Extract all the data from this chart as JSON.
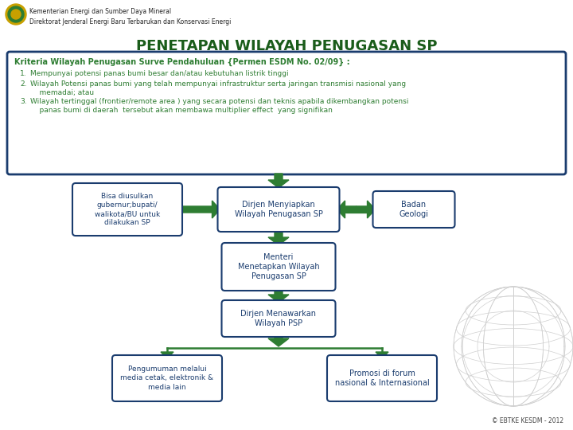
{
  "bg_color": "#ffffff",
  "title": "PENETAPAN WILAYAH PENUGASAN SP",
  "title_color": "#1a5c1a",
  "title_fontsize": 13,
  "header_text": "Kriteria Wilayah Penugasan Surve Pendahuluan {Permen ESDM No. 02/09} :",
  "criteria": [
    "Mempunyai potensi panas bumi besar dan/atau kebutuhan listrik tinggi",
    "Wilayah Potensi panas bumi yang telah mempunyai infrastruktur serta jaringan transmisi nasional yang\n    memadai; atau",
    "Wilayah tertinggal (frontier/remote area ) yang secara potensi dan teknis apabila dikembangkan potensi\n    panas bumi di daerah  tersebut akan membawa multiplier effect  yang signifikan"
  ],
  "box_border_color": "#1a3c6e",
  "box_bg_color": "#ffffff",
  "text_color": "#1a3c6e",
  "arrow_color": "#2e7d32",
  "node_left": "Bisa diusulkan\ngubernur;bupati/\nwalikota/BU untuk\ndilakukan SP",
  "node_center1": "Dirjen Menyiapkan\nWilayah Penugasan SP",
  "node_right": "Badan\nGeologi",
  "node_center2": "Menteri\nMenetapkan Wilayah\nPenugasan SP",
  "node_center3": "Dirjen Menawarkan\nWilayah PSP",
  "node_bottom_left": "Pengumuman melalui\nmedia cetak, elektronik &\nmedia lain",
  "node_bottom_right": "Promosi di forum\nnasional & Internasional",
  "footer": "© EBTKE KESDM - 2012",
  "logo_text": "Kementerian Energi dan Sumber Daya Mineral\nDirektorat Jenderal Energi Baru Terbarukan dan Konservasi Energi",
  "criteria_border_color": "#1a3c6e",
  "criteria_text_color": "#2e7d32"
}
